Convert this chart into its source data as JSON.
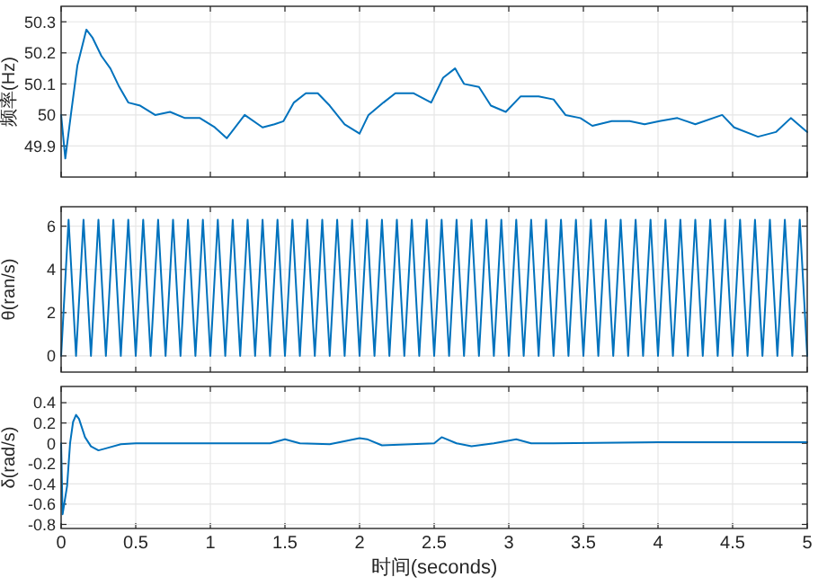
{
  "chart_data": [
    {
      "type": "line",
      "ylabel": "频率(Hz)",
      "xlim": [
        0,
        5
      ],
      "ylim": [
        49.8,
        50.35
      ],
      "xticks": [
        0,
        0.5,
        1,
        1.5,
        2,
        2.5,
        3,
        3.5,
        4,
        4.5,
        5
      ],
      "yticks": [
        49.9,
        50,
        50.1,
        50.2,
        50.3
      ],
      "grid": true,
      "tick_labels": "y",
      "line_style": "solid",
      "series": [
        {
          "color": "#0072bd",
          "x": [
            0,
            0.028,
            0.068,
            0.109,
            0.169,
            0.209,
            0.27,
            0.33,
            0.39,
            0.45,
            0.53,
            0.63,
            0.73,
            0.83,
            0.93,
            1.03,
            1.11,
            1.23,
            1.35,
            1.43,
            1.49,
            1.56,
            1.64,
            1.72,
            1.8,
            1.9,
            2,
            2.06,
            2.16,
            2.24,
            2.36,
            2.48,
            2.56,
            2.64,
            2.7,
            2.8,
            2.88,
            2.98,
            3.08,
            3.2,
            3.3,
            3.38,
            3.48,
            3.56,
            3.69,
            3.81,
            3.91,
            4.01,
            4.13,
            4.25,
            4.43,
            4.51,
            4.67,
            4.79,
            4.89,
            5
          ],
          "values": [
            50,
            49.86,
            50.01,
            50.16,
            50.275,
            50.25,
            50.19,
            50.15,
            50.09,
            50.04,
            50.03,
            50,
            50.01,
            49.99,
            49.99,
            49.96,
            49.925,
            50,
            49.96,
            49.97,
            49.98,
            50.04,
            50.07,
            50.07,
            50.03,
            49.97,
            49.94,
            50,
            50.04,
            50.07,
            50.07,
            50.04,
            50.12,
            50.15,
            50.1,
            50.09,
            50.03,
            50.01,
            50.06,
            50.06,
            50.05,
            50,
            49.99,
            49.965,
            49.98,
            49.98,
            49.97,
            49.98,
            49.99,
            49.97,
            50,
            49.96,
            49.93,
            49.945,
            49.99,
            49.945
          ]
        }
      ]
    },
    {
      "type": "line",
      "ylabel": "θ(ran/s)",
      "xlim": [
        0,
        5
      ],
      "ylim": [
        -0.75,
        6.9
      ],
      "xticks": [
        0,
        0.5,
        1,
        1.5,
        2,
        2.5,
        3,
        3.5,
        4,
        4.5,
        5
      ],
      "yticks": [
        0,
        2,
        4,
        6
      ],
      "grid": true,
      "tick_labels": "y",
      "line_style": "solid",
      "series": [
        {
          "color": "#0072bd",
          "x": [
            0,
            0.05,
            0.1,
            0.15,
            0.2,
            0.25,
            0.3,
            0.35,
            0.4,
            0.45,
            0.5,
            0.55,
            0.6,
            0.65,
            0.7,
            0.75,
            0.8,
            0.85,
            0.9,
            0.95,
            1,
            1.05,
            1.1,
            1.15,
            1.2,
            1.25,
            1.3,
            1.35,
            1.4,
            1.45,
            1.5,
            1.55,
            1.6,
            1.65,
            1.7,
            1.75,
            1.8,
            1.85,
            1.9,
            1.95,
            2,
            2.05,
            2.1,
            2.15,
            2.2,
            2.25,
            2.3,
            2.35,
            2.4,
            2.45,
            2.5,
            2.55,
            2.6,
            2.65,
            2.7,
            2.75,
            2.8,
            2.85,
            2.9,
            2.95,
            3,
            3.05,
            3.1,
            3.15,
            3.2,
            3.25,
            3.3,
            3.35,
            3.4,
            3.45,
            3.5,
            3.55,
            3.6,
            3.65,
            3.7,
            3.75,
            3.8,
            3.85,
            3.9,
            3.95,
            4,
            4.05,
            4.1,
            4.15,
            4.2,
            4.25,
            4.3,
            4.35,
            4.4,
            4.45,
            4.5,
            4.55,
            4.6,
            4.65,
            4.7,
            4.75,
            4.8,
            4.85,
            4.9,
            4.95,
            5
          ],
          "values": [
            0,
            6.3,
            0,
            6.3,
            0,
            6.3,
            0,
            6.3,
            0,
            6.3,
            0,
            6.3,
            0,
            6.3,
            0,
            6.3,
            0,
            6.3,
            0,
            6.3,
            0,
            6.3,
            0,
            6.3,
            0,
            6.3,
            0,
            6.3,
            0,
            6.3,
            0,
            6.3,
            0,
            6.3,
            0,
            6.3,
            0,
            6.3,
            0,
            6.3,
            0,
            6.3,
            0,
            6.3,
            0,
            6.3,
            0,
            6.3,
            0,
            6.3,
            0,
            6.3,
            0,
            6.3,
            0,
            6.3,
            0,
            6.3,
            0,
            6.3,
            0,
            6.3,
            0,
            6.3,
            0,
            6.3,
            0,
            6.3,
            0,
            6.3,
            0,
            6.3,
            0,
            6.3,
            0,
            6.3,
            0,
            6.3,
            0,
            6.3,
            0,
            6.3,
            0,
            6.3,
            0,
            6.3,
            0,
            6.3,
            0,
            6.3,
            0,
            6.3,
            0,
            6.3,
            0,
            6.3,
            0,
            6.3,
            0,
            6.3,
            0
          ]
        }
      ]
    },
    {
      "type": "line",
      "xlabel": "时间(seconds)",
      "ylabel": "δ(rad/s)",
      "xlim": [
        0,
        5
      ],
      "ylim": [
        -0.84,
        0.56
      ],
      "xticks": [
        0,
        0.5,
        1,
        1.5,
        2,
        2.5,
        3,
        3.5,
        4,
        4.5,
        5
      ],
      "yticks": [
        -0.8,
        -0.6,
        -0.4,
        -0.2,
        0,
        0.2,
        0.4
      ],
      "grid": true,
      "line_style": "solid",
      "series": [
        {
          "color": "#0072bd",
          "x": [
            0,
            0.01,
            0.04,
            0.06,
            0.08,
            0.1,
            0.12,
            0.16,
            0.2,
            0.25,
            0.3,
            0.4,
            0.5,
            1,
            1.4,
            1.5,
            1.6,
            1.8,
            2,
            2.05,
            2.15,
            2.5,
            2.55,
            2.65,
            2.75,
            2.9,
            3.05,
            3.15,
            3.3,
            4,
            4.5,
            5
          ],
          "values": [
            0,
            -0.7,
            -0.42,
            0,
            0.21,
            0.28,
            0.24,
            0.06,
            -0.03,
            -0.07,
            -0.05,
            -0.01,
            0,
            0,
            0,
            0.04,
            0,
            -0.01,
            0.05,
            0.04,
            -0.02,
            0,
            0.06,
            0,
            -0.03,
            0,
            0.04,
            0,
            0,
            0.01,
            0.01,
            0.01
          ]
        }
      ]
    }
  ]
}
